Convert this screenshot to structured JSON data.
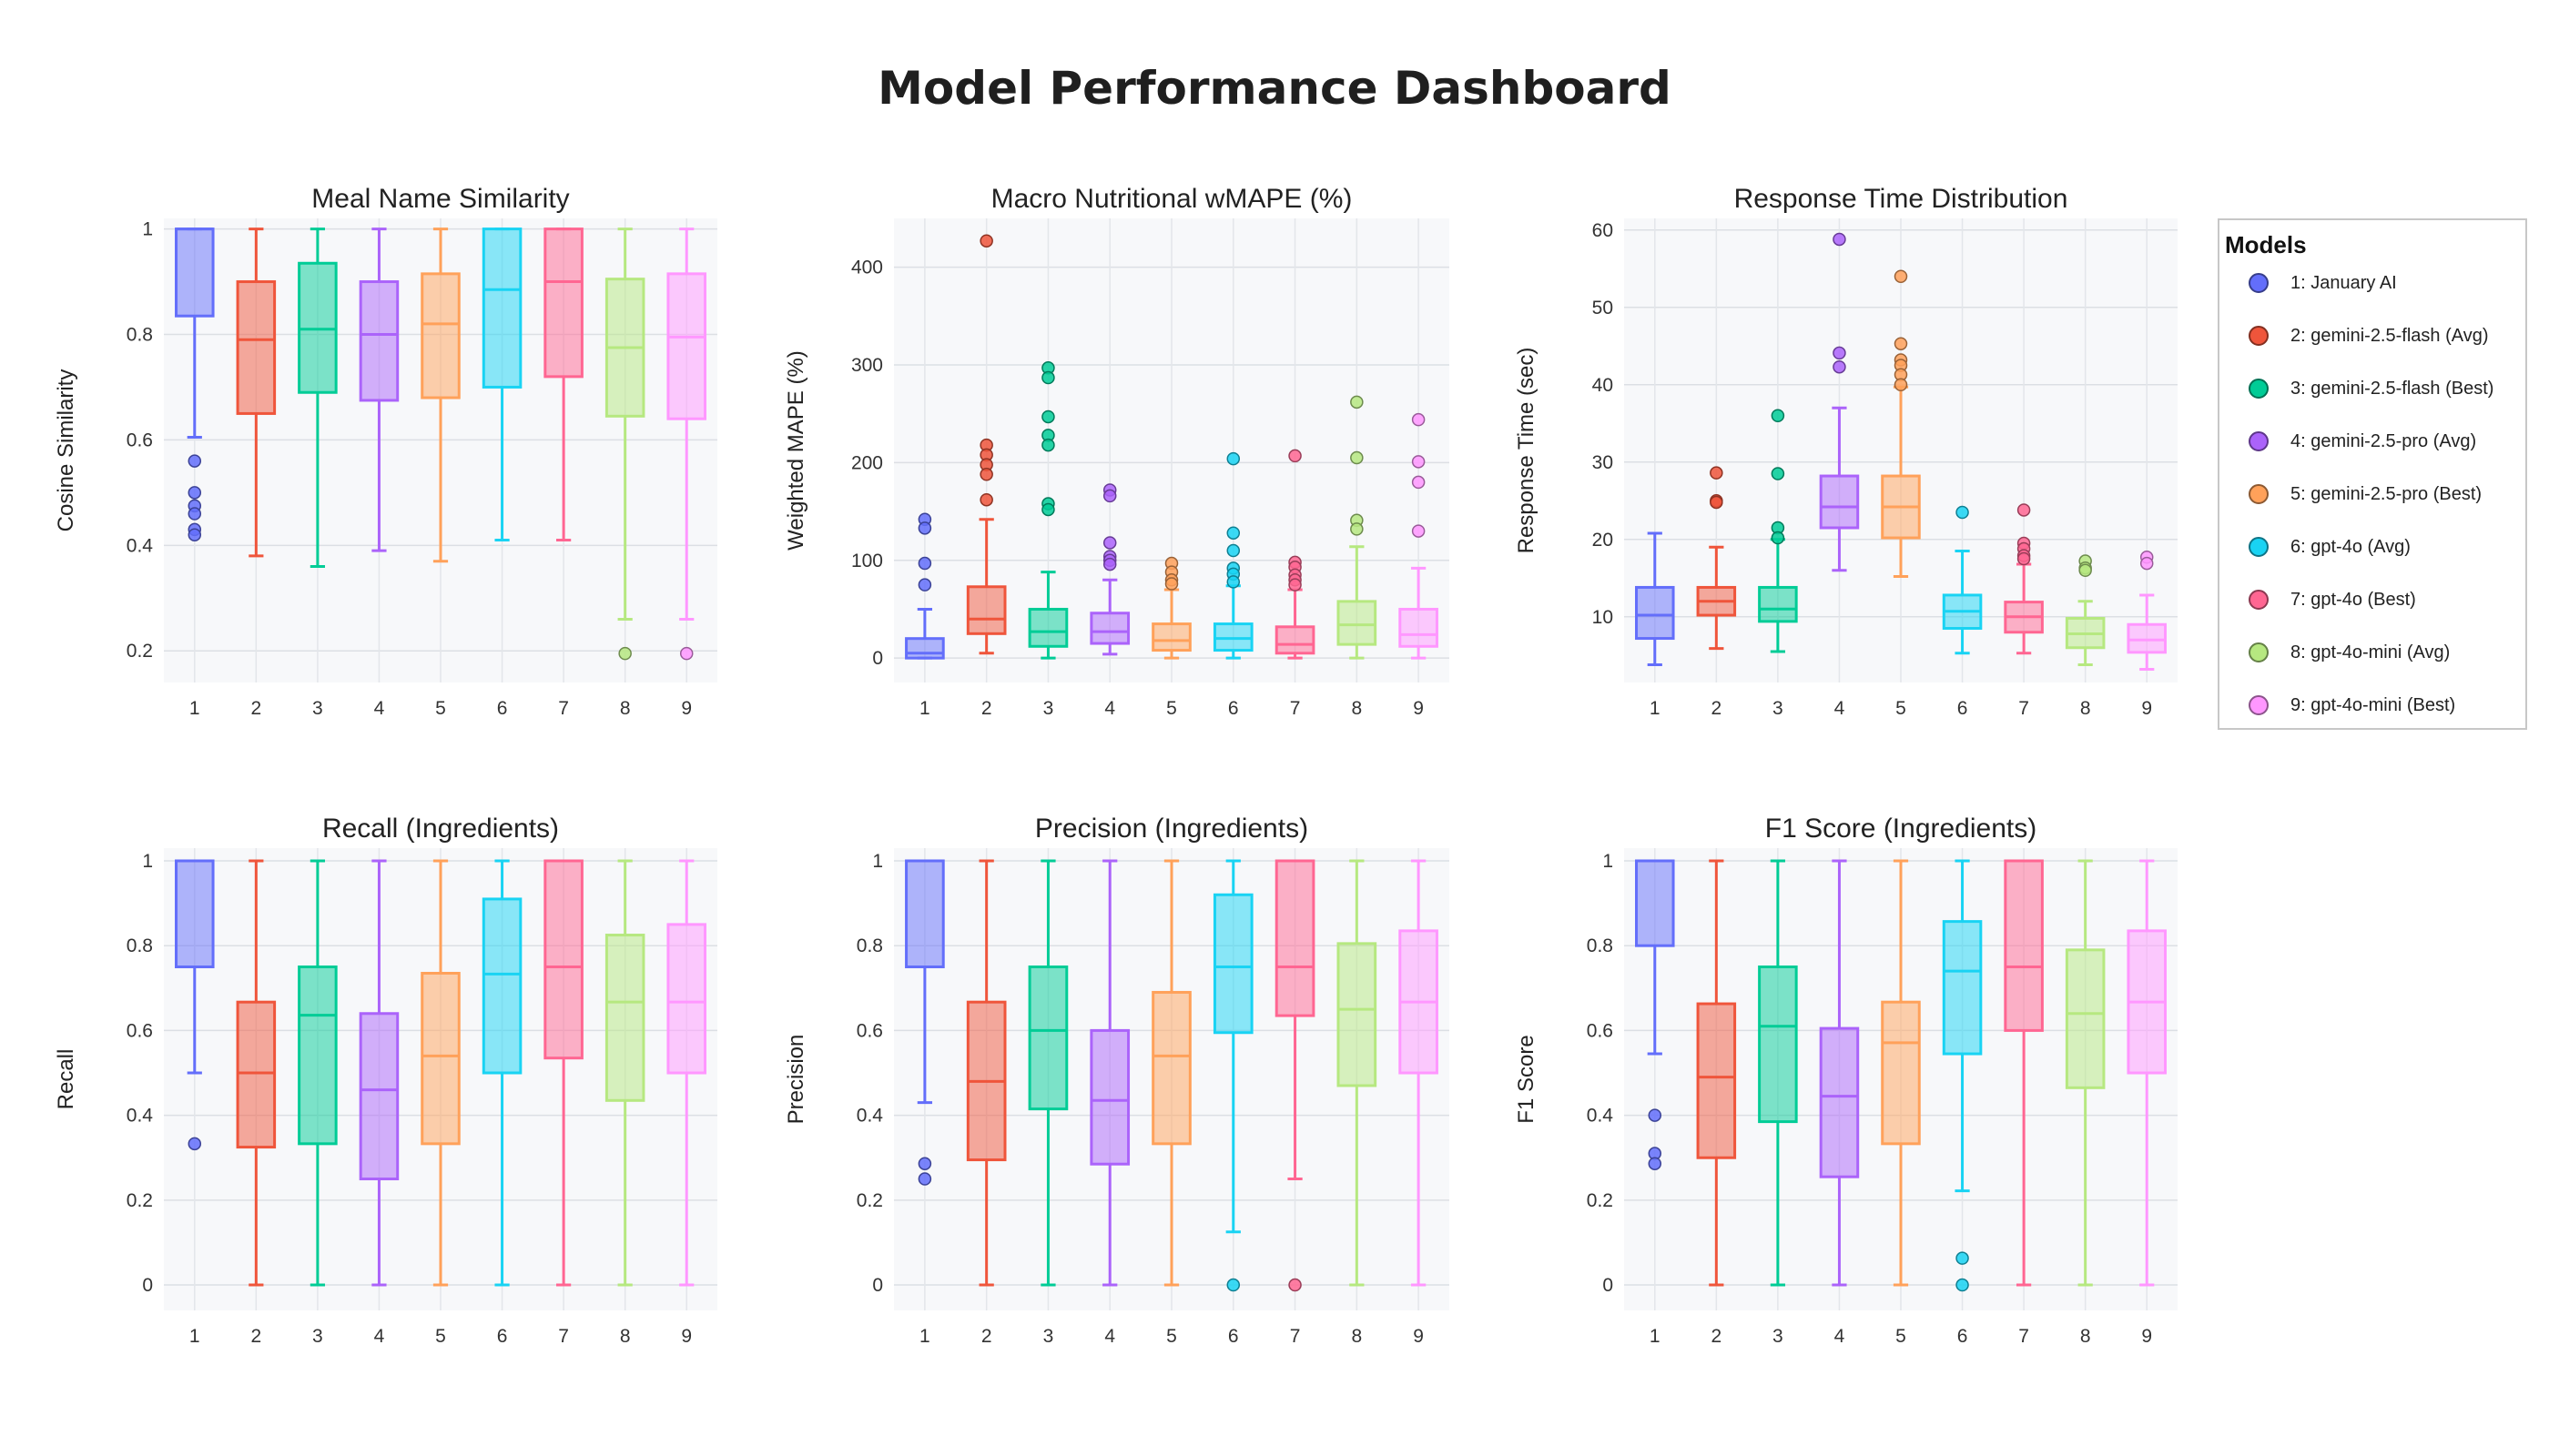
{
  "title": "Model Performance Dashboard",
  "legend": {
    "title": "Models",
    "items": [
      {
        "label": "1: January AI",
        "color": "#636efa"
      },
      {
        "label": "2: gemini-2.5-flash (Avg)",
        "color": "#ef553b"
      },
      {
        "label": "3: gemini-2.5-flash (Best)",
        "color": "#00cc96"
      },
      {
        "label": "4: gemini-2.5-pro (Avg)",
        "color": "#ab63fa"
      },
      {
        "label": "5: gemini-2.5-pro (Best)",
        "color": "#ffa15a"
      },
      {
        "label": "6: gpt-4o (Avg)",
        "color": "#19d3f3"
      },
      {
        "label": "7: gpt-4o (Best)",
        "color": "#ff6692"
      },
      {
        "label": "8: gpt-4o-mini (Avg)",
        "color": "#b6e880"
      },
      {
        "label": "9: gpt-4o-mini (Best)",
        "color": "#ff97ff"
      }
    ]
  },
  "chart_data": [
    {
      "type": "box",
      "title": "Meal Name Similarity",
      "ylabel": "Cosine Similarity",
      "ylim": [
        0.14,
        1.02
      ],
      "yticks": [
        0.2,
        0.4,
        0.6,
        0.8,
        1
      ],
      "ytick_labels": [
        "0.2",
        "0.4",
        "0.6",
        "0.8",
        "1"
      ],
      "categories": [
        "1",
        "2",
        "3",
        "4",
        "5",
        "6",
        "7",
        "8",
        "9"
      ],
      "boxes": [
        {
          "q1": 0.835,
          "median": 1.0,
          "q3": 1.0,
          "lower": 0.605,
          "upper": 1.0,
          "outliers": [
            0.56,
            0.5,
            0.475,
            0.46,
            0.43,
            0.42
          ]
        },
        {
          "q1": 0.65,
          "median": 0.79,
          "q3": 0.9,
          "lower": 0.38,
          "upper": 1.0,
          "outliers": []
        },
        {
          "q1": 0.69,
          "median": 0.81,
          "q3": 0.935,
          "lower": 0.36,
          "upper": 1.0,
          "outliers": []
        },
        {
          "q1": 0.675,
          "median": 0.8,
          "q3": 0.9,
          "lower": 0.39,
          "upper": 1.0,
          "outliers": []
        },
        {
          "q1": 0.68,
          "median": 0.82,
          "q3": 0.915,
          "lower": 0.37,
          "upper": 1.0,
          "outliers": []
        },
        {
          "q1": 0.7,
          "median": 0.885,
          "q3": 1.0,
          "lower": 0.41,
          "upper": 1.0,
          "outliers": []
        },
        {
          "q1": 0.72,
          "median": 0.9,
          "q3": 1.0,
          "lower": 0.41,
          "upper": 1.0,
          "outliers": []
        },
        {
          "q1": 0.645,
          "median": 0.775,
          "q3": 0.905,
          "lower": 0.26,
          "upper": 1.0,
          "outliers": [
            0.195
          ]
        },
        {
          "q1": 0.64,
          "median": 0.795,
          "q3": 0.915,
          "lower": 0.26,
          "upper": 1.0,
          "outliers": [
            0.195
          ]
        }
      ]
    },
    {
      "type": "box",
      "title": "Macro Nutritional wMAPE (%)",
      "ylabel": "Weighted MAPE (%)",
      "ylim": [
        -25,
        450
      ],
      "yticks": [
        0,
        100,
        200,
        300,
        400
      ],
      "ytick_labels": [
        "0",
        "100",
        "200",
        "300",
        "400"
      ],
      "categories": [
        "1",
        "2",
        "3",
        "4",
        "5",
        "6",
        "7",
        "8",
        "9"
      ],
      "boxes": [
        {
          "q1": 0,
          "median": 5,
          "q3": 20,
          "lower": 0,
          "upper": 50,
          "outliers": [
            142,
            133,
            97,
            75
          ]
        },
        {
          "q1": 25,
          "median": 40,
          "q3": 73,
          "lower": 5,
          "upper": 142,
          "outliers": [
            427,
            218,
            208,
            198,
            188,
            162
          ]
        },
        {
          "q1": 12,
          "median": 27,
          "q3": 50,
          "lower": 0,
          "upper": 88,
          "outliers": [
            297,
            287,
            247,
            228,
            218,
            158,
            152
          ]
        },
        {
          "q1": 15,
          "median": 27,
          "q3": 46,
          "lower": 4,
          "upper": 80,
          "outliers": [
            172,
            166,
            118,
            104,
            100,
            96
          ]
        },
        {
          "q1": 8,
          "median": 18,
          "q3": 35,
          "lower": 0,
          "upper": 70,
          "outliers": [
            97,
            88,
            80,
            76
          ]
        },
        {
          "q1": 8,
          "median": 20,
          "q3": 35,
          "lower": 0,
          "upper": 74,
          "outliers": [
            204,
            128,
            110,
            92,
            86,
            78
          ]
        },
        {
          "q1": 5,
          "median": 14,
          "q3": 32,
          "lower": 0,
          "upper": 70,
          "outliers": [
            207,
            98,
            93,
            85,
            80,
            75
          ]
        },
        {
          "q1": 14,
          "median": 34,
          "q3": 58,
          "lower": 0,
          "upper": 114,
          "outliers": [
            262,
            205,
            141,
            132
          ]
        },
        {
          "q1": 12,
          "median": 24,
          "q3": 50,
          "lower": 0,
          "upper": 92,
          "outliers": [
            244,
            201,
            180,
            130
          ]
        }
      ]
    },
    {
      "type": "box",
      "title": "Response Time Distribution",
      "ylabel": "Response Time (sec)",
      "ylim": [
        1.5,
        61.5
      ],
      "yticks": [
        10,
        20,
        30,
        40,
        50,
        60
      ],
      "ytick_labels": [
        "10",
        "20",
        "30",
        "40",
        "50",
        "60"
      ],
      "categories": [
        "1",
        "2",
        "3",
        "4",
        "5",
        "6",
        "7",
        "8",
        "9"
      ],
      "boxes": [
        {
          "q1": 7.2,
          "median": 10.2,
          "q3": 13.8,
          "lower": 3.8,
          "upper": 20.8,
          "outliers": []
        },
        {
          "q1": 10.2,
          "median": 12,
          "q3": 13.8,
          "lower": 5.9,
          "upper": 19,
          "outliers": [
            28.6,
            25,
            24.8
          ]
        },
        {
          "q1": 9.4,
          "median": 11,
          "q3": 13.8,
          "lower": 5.5,
          "upper": 20,
          "outliers": [
            36,
            28.5,
            21.5,
            20.2
          ]
        },
        {
          "q1": 21.5,
          "median": 24.2,
          "q3": 28.2,
          "lower": 16,
          "upper": 37,
          "outliers": [
            58.8,
            44.1,
            42.3
          ]
        },
        {
          "q1": 20.2,
          "median": 24.2,
          "q3": 28.2,
          "lower": 15.2,
          "upper": 39.7,
          "outliers": [
            54,
            45.3,
            43.2,
            42.5,
            41.3,
            40
          ]
        },
        {
          "q1": 8.5,
          "median": 10.7,
          "q3": 12.8,
          "lower": 5.3,
          "upper": 18.5,
          "outliers": [
            23.5
          ]
        },
        {
          "q1": 8,
          "median": 10,
          "q3": 11.9,
          "lower": 5.3,
          "upper": 16.8,
          "outliers": [
            23.8,
            19.5,
            18.8,
            17.9,
            17.5
          ]
        },
        {
          "q1": 6,
          "median": 7.8,
          "q3": 9.8,
          "lower": 3.8,
          "upper": 12,
          "outliers": [
            17.2,
            16.3,
            16
          ]
        },
        {
          "q1": 5.4,
          "median": 7,
          "q3": 9,
          "lower": 3.2,
          "upper": 12.8,
          "outliers": [
            17.7,
            16.9
          ]
        }
      ]
    },
    {
      "type": "box",
      "title": "Recall (Ingredients)",
      "ylabel": "Recall",
      "ylim": [
        -0.06,
        1.03
      ],
      "yticks": [
        0,
        0.2,
        0.4,
        0.6,
        0.8,
        1
      ],
      "ytick_labels": [
        "0",
        "0.2",
        "0.4",
        "0.6",
        "0.8",
        "1"
      ],
      "categories": [
        "1",
        "2",
        "3",
        "4",
        "5",
        "6",
        "7",
        "8",
        "9"
      ],
      "boxes": [
        {
          "q1": 0.75,
          "median": 1.0,
          "q3": 1.0,
          "lower": 0.5,
          "upper": 1.0,
          "outliers": [
            0.333
          ]
        },
        {
          "q1": 0.325,
          "median": 0.5,
          "q3": 0.667,
          "lower": 0,
          "upper": 1.0,
          "outliers": []
        },
        {
          "q1": 0.333,
          "median": 0.636,
          "q3": 0.75,
          "lower": 0,
          "upper": 1.0,
          "outliers": []
        },
        {
          "q1": 0.25,
          "median": 0.46,
          "q3": 0.64,
          "lower": 0,
          "upper": 1.0,
          "outliers": []
        },
        {
          "q1": 0.333,
          "median": 0.54,
          "q3": 0.735,
          "lower": 0,
          "upper": 1.0,
          "outliers": []
        },
        {
          "q1": 0.5,
          "median": 0.733,
          "q3": 0.91,
          "lower": 0,
          "upper": 1.0,
          "outliers": []
        },
        {
          "q1": 0.535,
          "median": 0.75,
          "q3": 1.0,
          "lower": 0,
          "upper": 1.0,
          "outliers": []
        },
        {
          "q1": 0.435,
          "median": 0.667,
          "q3": 0.825,
          "lower": 0,
          "upper": 1.0,
          "outliers": []
        },
        {
          "q1": 0.5,
          "median": 0.667,
          "q3": 0.85,
          "lower": 0,
          "upper": 1.0,
          "outliers": []
        }
      ]
    },
    {
      "type": "box",
      "title": "Precision (Ingredients)",
      "ylabel": "Precision",
      "ylim": [
        -0.06,
        1.03
      ],
      "yticks": [
        0,
        0.2,
        0.4,
        0.6,
        0.8,
        1
      ],
      "ytick_labels": [
        "0",
        "0.2",
        "0.4",
        "0.6",
        "0.8",
        "1"
      ],
      "categories": [
        "1",
        "2",
        "3",
        "4",
        "5",
        "6",
        "7",
        "8",
        "9"
      ],
      "boxes": [
        {
          "q1": 0.75,
          "median": 1.0,
          "q3": 1.0,
          "lower": 0.43,
          "upper": 1.0,
          "outliers": [
            0.286,
            0.25
          ]
        },
        {
          "q1": 0.295,
          "median": 0.48,
          "q3": 0.667,
          "lower": 0,
          "upper": 1.0,
          "outliers": []
        },
        {
          "q1": 0.415,
          "median": 0.6,
          "q3": 0.75,
          "lower": 0,
          "upper": 1.0,
          "outliers": []
        },
        {
          "q1": 0.285,
          "median": 0.435,
          "q3": 0.6,
          "lower": 0,
          "upper": 1.0,
          "outliers": []
        },
        {
          "q1": 0.333,
          "median": 0.54,
          "q3": 0.69,
          "lower": 0,
          "upper": 1.0,
          "outliers": []
        },
        {
          "q1": 0.595,
          "median": 0.75,
          "q3": 0.92,
          "lower": 0.125,
          "upper": 1.0,
          "outliers": [
            0
          ]
        },
        {
          "q1": 0.635,
          "median": 0.75,
          "q3": 1.0,
          "lower": 0.25,
          "upper": 1.0,
          "outliers": [
            0
          ]
        },
        {
          "q1": 0.47,
          "median": 0.65,
          "q3": 0.805,
          "lower": 0,
          "upper": 1.0,
          "outliers": []
        },
        {
          "q1": 0.5,
          "median": 0.667,
          "q3": 0.835,
          "lower": 0,
          "upper": 1.0,
          "outliers": []
        }
      ]
    },
    {
      "type": "box",
      "title": "F1 Score (Ingredients)",
      "ylabel": "F1 Score",
      "ylim": [
        -0.06,
        1.03
      ],
      "yticks": [
        0,
        0.2,
        0.4,
        0.6,
        0.8,
        1
      ],
      "ytick_labels": [
        "0",
        "0.2",
        "0.4",
        "0.6",
        "0.8",
        "1"
      ],
      "categories": [
        "1",
        "2",
        "3",
        "4",
        "5",
        "6",
        "7",
        "8",
        "9"
      ],
      "boxes": [
        {
          "q1": 0.8,
          "median": 1.0,
          "q3": 1.0,
          "lower": 0.545,
          "upper": 1.0,
          "outliers": [
            0.4,
            0.31,
            0.286
          ]
        },
        {
          "q1": 0.3,
          "median": 0.49,
          "q3": 0.663,
          "lower": 0,
          "upper": 1.0,
          "outliers": []
        },
        {
          "q1": 0.385,
          "median": 0.61,
          "q3": 0.75,
          "lower": 0,
          "upper": 1.0,
          "outliers": []
        },
        {
          "q1": 0.255,
          "median": 0.445,
          "q3": 0.605,
          "lower": 0,
          "upper": 1.0,
          "outliers": []
        },
        {
          "q1": 0.333,
          "median": 0.571,
          "q3": 0.667,
          "lower": 0,
          "upper": 1.0,
          "outliers": []
        },
        {
          "q1": 0.545,
          "median": 0.74,
          "q3": 0.857,
          "lower": 0.222,
          "upper": 1.0,
          "outliers": [
            0.063,
            0
          ]
        },
        {
          "q1": 0.6,
          "median": 0.75,
          "q3": 1.0,
          "lower": 0,
          "upper": 1.0,
          "outliers": []
        },
        {
          "q1": 0.465,
          "median": 0.64,
          "q3": 0.79,
          "lower": 0,
          "upper": 1.0,
          "outliers": []
        },
        {
          "q1": 0.5,
          "median": 0.667,
          "q3": 0.835,
          "lower": 0,
          "upper": 1.0,
          "outliers": []
        }
      ]
    }
  ]
}
